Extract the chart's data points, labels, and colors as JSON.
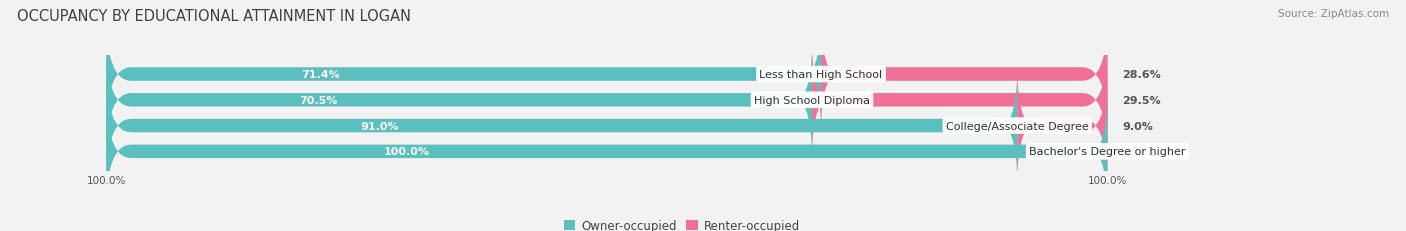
{
  "title": "OCCUPANCY BY EDUCATIONAL ATTAINMENT IN LOGAN",
  "source": "Source: ZipAtlas.com",
  "categories": [
    "Less than High School",
    "High School Diploma",
    "College/Associate Degree",
    "Bachelor's Degree or higher"
  ],
  "owner_values": [
    71.4,
    70.5,
    91.0,
    100.0
  ],
  "renter_values": [
    28.6,
    29.5,
    9.0,
    0.0
  ],
  "owner_color": "#5BBFBF",
  "renter_color": "#F07098",
  "bg_color": "#f2f2f2",
  "track_color": "#e2e2e2",
  "bar_height": 0.52,
  "title_fontsize": 10.5,
  "label_fontsize": 8,
  "value_fontsize": 8,
  "legend_fontsize": 8.5,
  "source_fontsize": 7.5,
  "xlim_left": -5,
  "xlim_right": 120,
  "tick_label_left": "100.0%",
  "tick_label_right": "100.0%"
}
